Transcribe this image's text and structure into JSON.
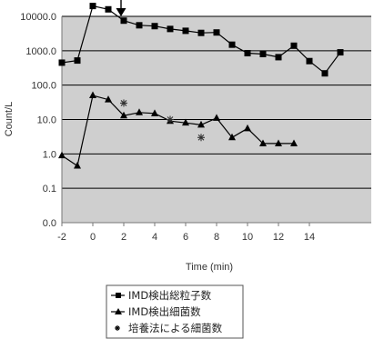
{
  "chart_data": {
    "type": "line",
    "xlabel": "Time (min)",
    "ylabel": "Count/L",
    "y_scale": "log",
    "ylim": [
      0.01,
      10000
    ],
    "y_tick_values": [
      0.01,
      0.1,
      1,
      10,
      100,
      1000,
      10000
    ],
    "y_tick_labels": [
      "0.0",
      "0.1",
      "1.0",
      "10.0",
      "100.0",
      "1000.0",
      "10000.0"
    ],
    "xlim": [
      -2,
      18
    ],
    "x_tick_values": [
      -2,
      0,
      2,
      4,
      6,
      8,
      10,
      12,
      14
    ],
    "x_tick_labels": [
      "-2",
      "0",
      "2",
      "4",
      "6",
      "8",
      "10",
      "12",
      "14"
    ],
    "grid": "horizontal",
    "legend_position": "bottom",
    "annotation": {
      "type": "arrow",
      "x": 0
    },
    "series": [
      {
        "name": "IMD検出総粒子数",
        "marker": "square",
        "line": true,
        "x": [
          -2,
          -1,
          0,
          1,
          2,
          3,
          4,
          5,
          6,
          7,
          8,
          9,
          10,
          11,
          12,
          13,
          14,
          15,
          16
        ],
        "y": [
          450,
          520,
          20000,
          16000,
          7500,
          5500,
          5200,
          4300,
          3800,
          3300,
          3400,
          1500,
          850,
          800,
          650,
          1400,
          500,
          220,
          900
        ]
      },
      {
        "name": "IMD検出細菌数",
        "marker": "triangle",
        "line": true,
        "x": [
          -2,
          -1,
          0,
          1,
          2,
          3,
          4,
          5,
          6,
          7,
          8,
          9,
          10,
          11,
          12,
          13
        ],
        "y": [
          0.9,
          0.45,
          50,
          38,
          13,
          16,
          15,
          9,
          8,
          7,
          11,
          3,
          5.5,
          2,
          2,
          2
        ]
      },
      {
        "name": "培養法による細菌数",
        "marker": "asterisk",
        "line": false,
        "x": [
          2,
          5,
          7
        ],
        "y": [
          30,
          10,
          3
        ]
      }
    ]
  }
}
